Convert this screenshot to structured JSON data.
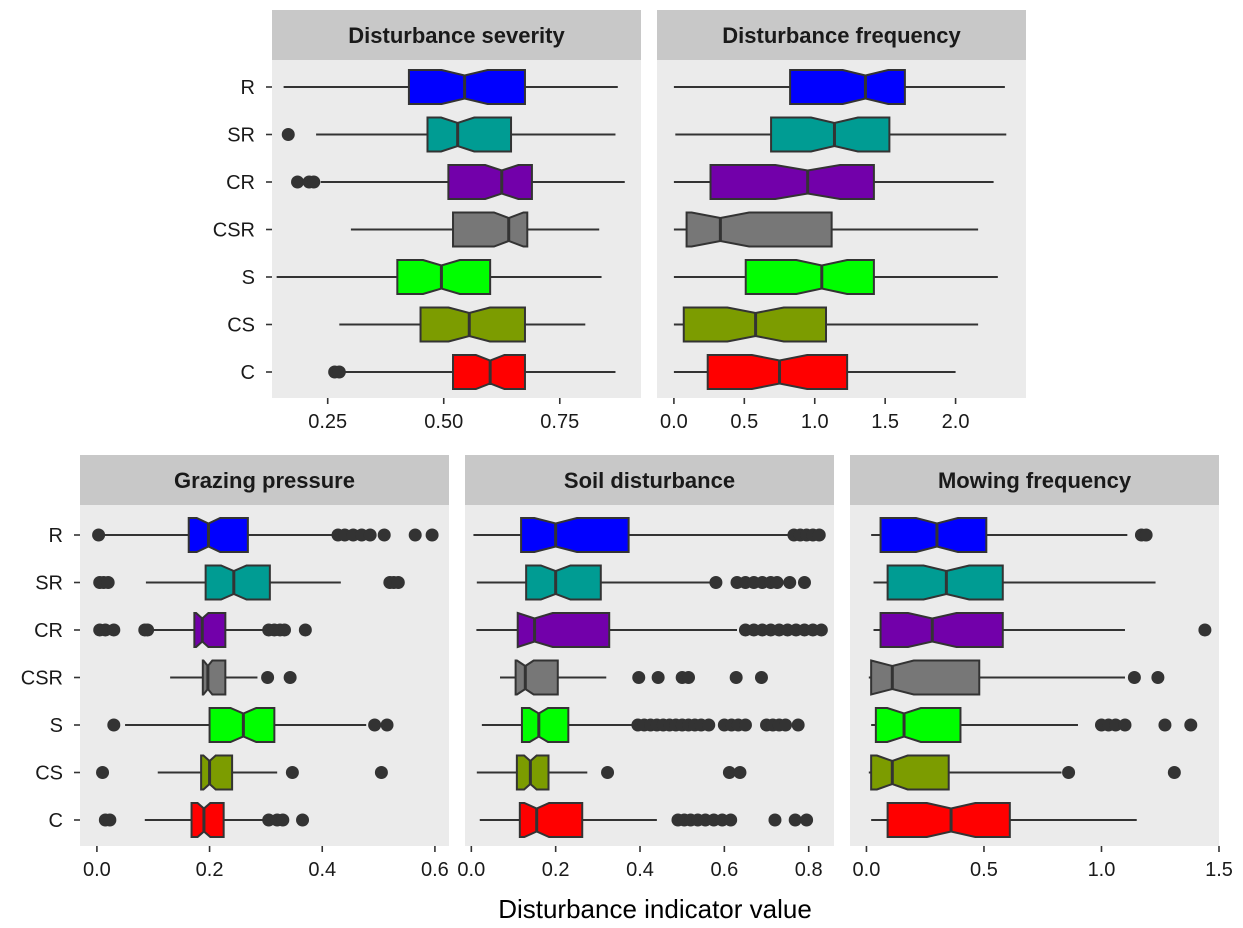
{
  "chart_data": {
    "type": "boxplot",
    "xlabel": "Disturbance indicator value",
    "categories": [
      "R",
      "SR",
      "CR",
      "CSR",
      "S",
      "CS",
      "C"
    ],
    "colors": {
      "R": "#0000ff",
      "SR": "#009c93",
      "CR": "#7200aa",
      "CSR": "#777777",
      "S": "#00ff00",
      "CS": "#7c9c00",
      "C": "#ff0000"
    },
    "panels": [
      {
        "title": "Disturbance severity",
        "xlim": [
          0.13,
          0.925
        ],
        "ticks": [
          0.25,
          0.5,
          0.75
        ],
        "tick_labels": [
          "0.25",
          "0.50",
          "0.75"
        ],
        "boxes": [
          {
            "group": "R",
            "whisker_low": 0.155,
            "q1": 0.425,
            "median": 0.545,
            "q3": 0.675,
            "whisker_high": 0.875,
            "outliers": []
          },
          {
            "group": "SR",
            "whisker_low": 0.225,
            "q1": 0.465,
            "median": 0.53,
            "q3": 0.645,
            "whisker_high": 0.87,
            "outliers": [
              0.165
            ]
          },
          {
            "group": "CR",
            "whisker_low": 0.235,
            "q1": 0.51,
            "median": 0.625,
            "q3": 0.69,
            "whisker_high": 0.89,
            "outliers": [
              0.185,
              0.21,
              0.22
            ]
          },
          {
            "group": "CSR",
            "whisker_low": 0.3,
            "q1": 0.52,
            "median": 0.64,
            "q3": 0.68,
            "whisker_high": 0.835,
            "outliers": []
          },
          {
            "group": "S",
            "whisker_low": 0.14,
            "q1": 0.4,
            "median": 0.495,
            "q3": 0.6,
            "whisker_high": 0.84,
            "outliers": []
          },
          {
            "group": "CS",
            "whisker_low": 0.275,
            "q1": 0.45,
            "median": 0.555,
            "q3": 0.675,
            "whisker_high": 0.805,
            "outliers": []
          },
          {
            "group": "C",
            "whisker_low": 0.285,
            "q1": 0.52,
            "median": 0.6,
            "q3": 0.675,
            "whisker_high": 0.87,
            "outliers": [
              0.265,
              0.275
            ]
          }
        ]
      },
      {
        "title": "Disturbance frequency",
        "xlim": [
          -0.12,
          2.5
        ],
        "ticks": [
          0.0,
          0.5,
          1.0,
          1.5,
          2.0
        ],
        "tick_labels": [
          "0.0",
          "0.5",
          "1.0",
          "1.5",
          "2.0"
        ],
        "boxes": [
          {
            "group": "R",
            "whisker_low": 0.0,
            "q1": 0.825,
            "median": 1.36,
            "q3": 1.64,
            "whisker_high": 2.35,
            "outliers": []
          },
          {
            "group": "SR",
            "whisker_low": 0.01,
            "q1": 0.69,
            "median": 1.14,
            "q3": 1.53,
            "whisker_high": 2.36,
            "outliers": []
          },
          {
            "group": "CR",
            "whisker_low": 0.0,
            "q1": 0.26,
            "median": 0.95,
            "q3": 1.42,
            "whisker_high": 2.27,
            "outliers": []
          },
          {
            "group": "CSR",
            "whisker_low": 0.0,
            "q1": 0.09,
            "median": 0.33,
            "q3": 1.12,
            "whisker_high": 2.16,
            "outliers": []
          },
          {
            "group": "S",
            "whisker_low": 0.0,
            "q1": 0.51,
            "median": 1.05,
            "q3": 1.42,
            "whisker_high": 2.3,
            "outliers": []
          },
          {
            "group": "CS",
            "whisker_low": 0.0,
            "q1": 0.07,
            "median": 0.58,
            "q3": 1.08,
            "whisker_high": 2.16,
            "outliers": []
          },
          {
            "group": "C",
            "whisker_low": 0.0,
            "q1": 0.24,
            "median": 0.75,
            "q3": 1.23,
            "whisker_high": 2.0,
            "outliers": []
          }
        ]
      },
      {
        "title": "Grazing pressure",
        "xlim": [
          -0.03,
          0.625
        ],
        "ticks": [
          0.0,
          0.2,
          0.4,
          0.6
        ],
        "tick_labels": [
          "0.0",
          "0.2",
          "0.4",
          "0.6"
        ],
        "boxes": [
          {
            "group": "R",
            "whisker_low": 0.0,
            "q1": 0.163,
            "median": 0.198,
            "q3": 0.268,
            "whisker_high": 0.42,
            "outliers": [
              0.003,
              0.428,
              0.44,
              0.455,
              0.47,
              0.485,
              0.51,
              0.565,
              0.595
            ]
          },
          {
            "group": "SR",
            "whisker_low": 0.087,
            "q1": 0.193,
            "median": 0.243,
            "q3": 0.307,
            "whisker_high": 0.433,
            "outliers": [
              0.005,
              0.012,
              0.02,
              0.52,
              0.527,
              0.535
            ]
          },
          {
            "group": "CR",
            "whisker_low": 0.1,
            "q1": 0.173,
            "median": 0.187,
            "q3": 0.228,
            "whisker_high": 0.3,
            "outliers": [
              0.005,
              0.015,
              0.03,
              0.085,
              0.09,
              0.305,
              0.315,
              0.325,
              0.333,
              0.37
            ]
          },
          {
            "group": "CSR",
            "whisker_low": 0.13,
            "q1": 0.188,
            "median": 0.197,
            "q3": 0.228,
            "whisker_high": 0.285,
            "outliers": [
              0.303,
              0.343
            ]
          },
          {
            "group": "S",
            "whisker_low": 0.05,
            "q1": 0.2,
            "median": 0.26,
            "q3": 0.315,
            "whisker_high": 0.478,
            "outliers": [
              0.03,
              0.493,
              0.515
            ]
          },
          {
            "group": "CS",
            "whisker_low": 0.108,
            "q1": 0.185,
            "median": 0.2,
            "q3": 0.24,
            "whisker_high": 0.32,
            "outliers": [
              0.01,
              0.347,
              0.505
            ]
          },
          {
            "group": "C",
            "whisker_low": 0.085,
            "q1": 0.168,
            "median": 0.19,
            "q3": 0.225,
            "whisker_high": 0.298,
            "outliers": [
              0.015,
              0.023,
              0.305,
              0.32,
              0.33,
              0.365
            ]
          }
        ]
      },
      {
        "title": "Soil disturbance",
        "xlim": [
          -0.015,
          0.86
        ],
        "ticks": [
          0.0,
          0.2,
          0.4,
          0.6,
          0.8
        ],
        "tick_labels": [
          "0.0",
          "0.2",
          "0.4",
          "0.6",
          "0.8"
        ],
        "boxes": [
          {
            "group": "R",
            "whisker_low": 0.005,
            "q1": 0.118,
            "median": 0.2,
            "q3": 0.373,
            "whisker_high": 0.75,
            "outliers": [
              0.765,
              0.78,
              0.795,
              0.81,
              0.825
            ]
          },
          {
            "group": "SR",
            "whisker_low": 0.013,
            "q1": 0.13,
            "median": 0.2,
            "q3": 0.307,
            "whisker_high": 0.565,
            "outliers": [
              0.58,
              0.63,
              0.65,
              0.67,
              0.69,
              0.71,
              0.725,
              0.755,
              0.79
            ]
          },
          {
            "group": "CR",
            "whisker_low": 0.012,
            "q1": 0.11,
            "median": 0.15,
            "q3": 0.327,
            "whisker_high": 0.63,
            "outliers": [
              0.65,
              0.67,
              0.69,
              0.71,
              0.73,
              0.75,
              0.77,
              0.79,
              0.81,
              0.83
            ]
          },
          {
            "group": "CSR",
            "whisker_low": 0.068,
            "q1": 0.105,
            "median": 0.128,
            "q3": 0.205,
            "whisker_high": 0.32,
            "outliers": [
              0.397,
              0.443,
              0.5,
              0.515,
              0.628,
              0.688
            ]
          },
          {
            "group": "S",
            "whisker_low": 0.025,
            "q1": 0.12,
            "median": 0.16,
            "q3": 0.23,
            "whisker_high": 0.38,
            "outliers": [
              0.395,
              0.41,
              0.425,
              0.44,
              0.455,
              0.47,
              0.485,
              0.5,
              0.515,
              0.53,
              0.545,
              0.563,
              0.6,
              0.617,
              0.633,
              0.65,
              0.7,
              0.715,
              0.73,
              0.745,
              0.775
            ]
          },
          {
            "group": "CS",
            "whisker_low": 0.013,
            "q1": 0.108,
            "median": 0.14,
            "q3": 0.183,
            "whisker_high": 0.275,
            "outliers": [
              0.323,
              0.612,
              0.637
            ]
          },
          {
            "group": "C",
            "whisker_low": 0.02,
            "q1": 0.115,
            "median": 0.155,
            "q3": 0.263,
            "whisker_high": 0.44,
            "outliers": [
              0.49,
              0.505,
              0.52,
              0.537,
              0.555,
              0.575,
              0.595,
              0.615,
              0.72,
              0.768,
              0.795
            ]
          }
        ]
      },
      {
        "title": "Mowing frequency",
        "xlim": [
          -0.07,
          1.5
        ],
        "ticks": [
          0.0,
          0.5,
          1.0,
          1.5
        ],
        "tick_labels": [
          "0.0",
          "0.5",
          "1.0",
          "1.5"
        ],
        "boxes": [
          {
            "group": "R",
            "whisker_low": 0.02,
            "q1": 0.06,
            "median": 0.3,
            "q3": 0.51,
            "whisker_high": 1.11,
            "outliers": [
              1.17,
              1.19
            ]
          },
          {
            "group": "SR",
            "whisker_low": 0.03,
            "q1": 0.09,
            "median": 0.34,
            "q3": 0.58,
            "whisker_high": 1.23,
            "outliers": []
          },
          {
            "group": "CR",
            "whisker_low": 0.03,
            "q1": 0.06,
            "median": 0.28,
            "q3": 0.58,
            "whisker_high": 1.1,
            "outliers": [
              1.44
            ]
          },
          {
            "group": "CSR",
            "whisker_low": 0.01,
            "q1": 0.02,
            "median": 0.11,
            "q3": 0.48,
            "whisker_high": 1.1,
            "outliers": [
              1.14,
              1.24
            ]
          },
          {
            "group": "S",
            "whisker_low": 0.02,
            "q1": 0.04,
            "median": 0.16,
            "q3": 0.4,
            "whisker_high": 0.9,
            "outliers": [
              1.0,
              1.03,
              1.06,
              1.1,
              1.27,
              1.38
            ]
          },
          {
            "group": "CS",
            "whisker_low": 0.01,
            "q1": 0.02,
            "median": 0.11,
            "q3": 0.35,
            "whisker_high": 0.83,
            "outliers": [
              0.86,
              1.31
            ]
          },
          {
            "group": "C",
            "whisker_low": 0.02,
            "q1": 0.09,
            "median": 0.36,
            "q3": 0.61,
            "whisker_high": 1.15,
            "outliers": []
          }
        ]
      }
    ]
  }
}
